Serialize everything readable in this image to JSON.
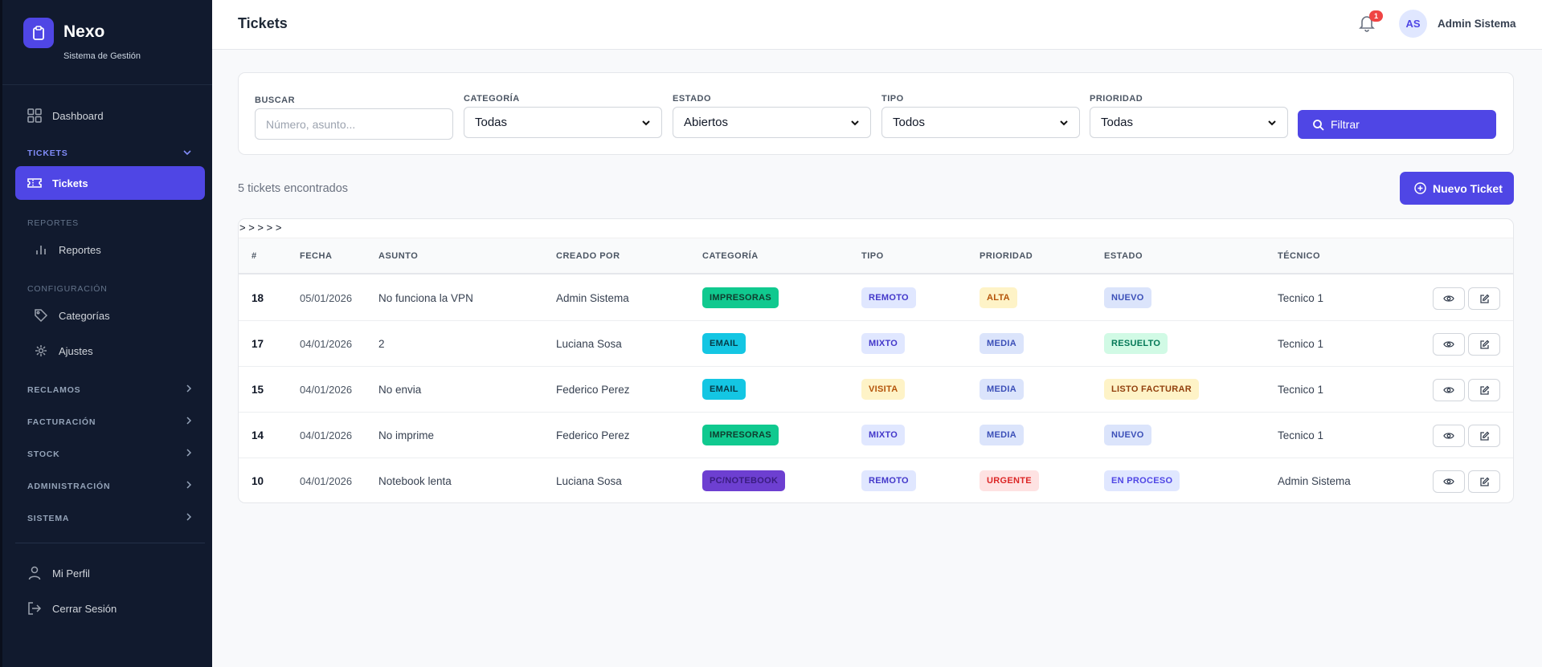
{
  "brand": {
    "name": "Nexo",
    "subtitle": "Sistema de Gestión"
  },
  "sidebar": {
    "dashboard": "Dashboard",
    "tickets_section": "TICKETS",
    "tickets": "Tickets",
    "reportes_section": "REPORTES",
    "reportes": "Reportes",
    "config_section": "CONFIGURACIÓN",
    "categorias": "Categorías",
    "ajustes": "Ajustes",
    "groups": [
      "RECLAMOS",
      "FACTURACIÓN",
      "STOCK",
      "ADMINISTRACIÓN",
      "SISTEMA"
    ],
    "perfil": "Mi Perfil",
    "logout": "Cerrar Sesión"
  },
  "header": {
    "title": "Tickets",
    "notif_count": "1",
    "user_initials": "AS",
    "user_name": "Admin Sistema"
  },
  "filters": {
    "buscar_label": "BUSCAR",
    "buscar_placeholder": "Número, asunto...",
    "categoria_label": "CATEGORÍA",
    "categoria_value": "Todas",
    "estado_label": "ESTADO",
    "estado_value": "Abiertos",
    "tipo_label": "TIPO",
    "tipo_value": "Todos",
    "prioridad_label": "PRIORIDAD",
    "prioridad_value": "Todas",
    "filter_button": "Filtrar"
  },
  "summary": {
    "count_text": "5 tickets encontrados",
    "new_button": "Nuevo Ticket"
  },
  "table": {
    "stray_text": "> > > > >",
    "headers": [
      "#",
      "FECHA",
      "ASUNTO",
      "CREADO POR",
      "CATEGORÍA",
      "TIPO",
      "PRIORIDAD",
      "ESTADO",
      "TÉCNICO"
    ],
    "rows": [
      {
        "id": "18",
        "fecha": "05/01/2026",
        "asunto": "No funciona la VPN",
        "creado": "Admin Sistema",
        "categoria": "IMPRESORAS",
        "tipo": "REMOTO",
        "prioridad": "ALTA",
        "estado": "NUEVO",
        "tecnico": "Tecnico 1"
      },
      {
        "id": "17",
        "fecha": "04/01/2026",
        "asunto": "2",
        "creado": "Luciana Sosa",
        "categoria": "EMAIL",
        "tipo": "MIXTO",
        "prioridad": "MEDIA",
        "estado": "RESUELTO",
        "tecnico": "Tecnico 1"
      },
      {
        "id": "15",
        "fecha": "04/01/2026",
        "asunto": "No envia",
        "creado": "Federico Perez",
        "categoria": "EMAIL",
        "tipo": "VISITA",
        "prioridad": "MEDIA",
        "estado": "LISTO FACTURAR",
        "tecnico": "Tecnico 1"
      },
      {
        "id": "14",
        "fecha": "04/01/2026",
        "asunto": "No imprime",
        "creado": "Federico Perez",
        "categoria": "IMPRESORAS",
        "tipo": "MIXTO",
        "prioridad": "MEDIA",
        "estado": "NUEVO",
        "tecnico": "Tecnico 1"
      },
      {
        "id": "10",
        "fecha": "04/01/2026",
        "asunto": "Notebook lenta",
        "creado": "Luciana Sosa",
        "categoria": "PC/NOTEBOOK",
        "tipo": "REMOTO",
        "prioridad": "URGENTE",
        "estado": "EN PROCESO",
        "tecnico": "Admin Sistema"
      }
    ]
  },
  "badge_colors": {
    "IMPRESORAS": [
      "#10c98f",
      "#0f3d2e"
    ],
    "EMAIL": [
      "#14c6e3",
      "#063b47"
    ],
    "PC/NOTEBOOK": [
      "#6d3fd1",
      "#3a1c80"
    ],
    "REMOTO": [
      "#e0e7ff",
      "#4338ca"
    ],
    "MIXTO": [
      "#e0e7ff",
      "#4338ca"
    ],
    "VISITA": [
      "#fef3c7",
      "#b45309"
    ],
    "ALTA": [
      "#fef3c7",
      "#b45309"
    ],
    "MEDIA": [
      "#dbe4fb",
      "#3b4fb8"
    ],
    "URGENTE": [
      "#fee2e2",
      "#dc2626"
    ],
    "NUEVO": [
      "#dbe4fb",
      "#3b4fb8"
    ],
    "RESUELTO": [
      "#d1fae5",
      "#047857"
    ],
    "LISTO FACTURAR": [
      "#fef3c7",
      "#92400e"
    ],
    "EN PROCESO": [
      "#e0e7ff",
      "#4f46e5"
    ]
  }
}
